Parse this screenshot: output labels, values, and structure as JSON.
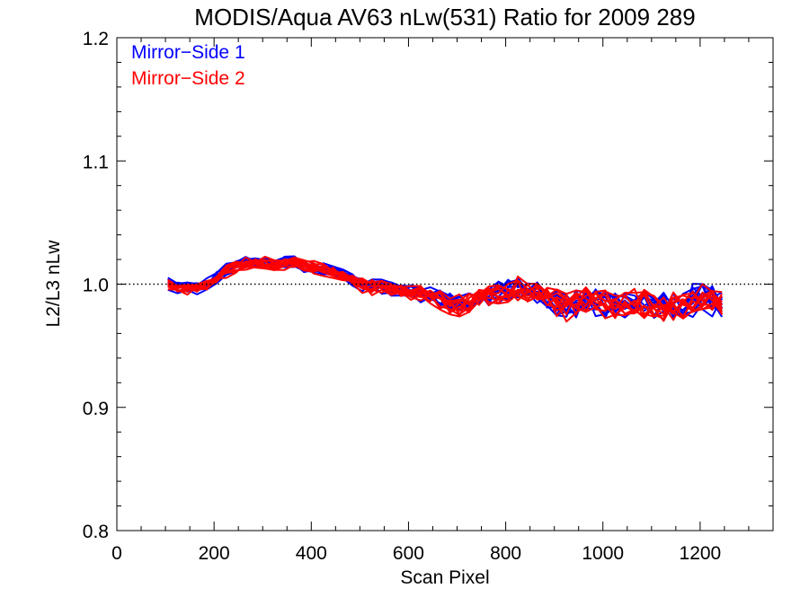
{
  "chart_data": {
    "type": "line",
    "title": "MODIS/Aqua AV63 nLw(531) Ratio for 2009 289",
    "xlabel": "Scan Pixel",
    "ylabel": "L2/L3 nLw",
    "xlim": [
      0,
      1350
    ],
    "ylim": [
      0.8,
      1.2
    ],
    "x_ticks": [
      0,
      200,
      400,
      600,
      800,
      1000,
      1200
    ],
    "x_tick_labels": [
      "0",
      "200",
      "400",
      "600",
      "800",
      "1000",
      "1200"
    ],
    "y_ticks": [
      0.8,
      0.9,
      1.0,
      1.1,
      1.2
    ],
    "y_tick_labels": [
      "0.8",
      "0.9",
      "1.0",
      "1.1",
      "1.2"
    ],
    "reference_line": {
      "y": 1.0,
      "style": "dotted"
    },
    "grid": false,
    "legend": {
      "placement": "top-left"
    },
    "x": [
      105,
      125,
      145,
      165,
      185,
      205,
      225,
      245,
      265,
      285,
      305,
      325,
      345,
      365,
      385,
      405,
      425,
      445,
      465,
      485,
      505,
      525,
      545,
      565,
      585,
      605,
      625,
      645,
      665,
      685,
      705,
      725,
      745,
      765,
      785,
      805,
      825,
      845,
      865,
      885,
      905,
      925,
      945,
      965,
      985,
      1005,
      1025,
      1045,
      1065,
      1085,
      1105,
      1125,
      1145,
      1165,
      1185,
      1205,
      1225,
      1245
    ],
    "base": [
      1.0,
      0.998,
      0.997,
      0.998,
      1.0,
      1.005,
      1.011,
      1.015,
      1.017,
      1.018,
      1.018,
      1.016,
      1.017,
      1.018,
      1.016,
      1.014,
      1.012,
      1.01,
      1.008,
      1.004,
      1.0,
      0.998,
      0.998,
      0.996,
      0.995,
      0.994,
      0.993,
      0.991,
      0.989,
      0.985,
      0.983,
      0.986,
      0.99,
      0.991,
      0.993,
      0.995,
      0.997,
      0.995,
      0.994,
      0.99,
      0.985,
      0.983,
      0.985,
      0.987,
      0.986,
      0.984,
      0.985,
      0.983,
      0.986,
      0.985,
      0.983,
      0.982,
      0.983,
      0.981,
      0.987,
      0.991,
      0.986,
      0.984
    ],
    "series": [
      {
        "name": "Mirror−Side 1",
        "color": "#0000ff",
        "line_count": 11
      },
      {
        "name": "Mirror−Side 2",
        "color": "#ff0000",
        "line_count": 11
      }
    ]
  }
}
